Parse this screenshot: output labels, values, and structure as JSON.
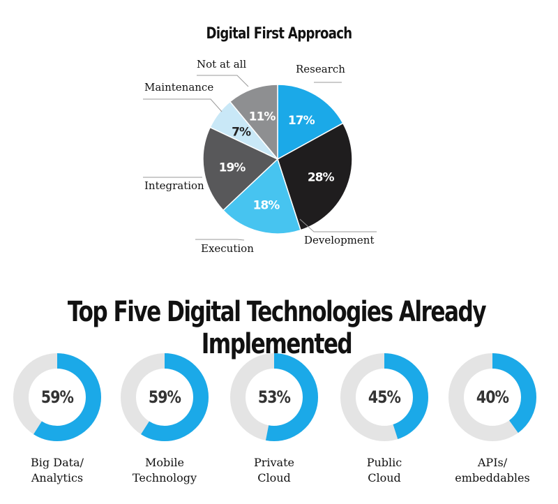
{
  "chart_data": [
    {
      "type": "pie",
      "title": "Digital First Approach",
      "slices": [
        {
          "label": "Research",
          "value": 17,
          "display": "17%",
          "color": "#1ba9e8",
          "text_color": "#ffffff"
        },
        {
          "label": "Development",
          "value": 28,
          "display": "28%",
          "color": "#1f1d1e",
          "text_color": "#ffffff"
        },
        {
          "label": "Execution",
          "value": 18,
          "display": "18%",
          "color": "#47c4f0",
          "text_color": "#ffffff"
        },
        {
          "label": "Integration",
          "value": 19,
          "display": "19%",
          "color": "#58585a",
          "text_color": "#ffffff"
        },
        {
          "label": "Maintenance",
          "value": 7,
          "display": "7%",
          "color": "#c9e8f7",
          "text_color": "#222222"
        },
        {
          "label": "Not at all",
          "value": 11,
          "display": "11%",
          "color": "#8e8f91",
          "text_color": "#ffffff"
        }
      ],
      "start_angle": "12 o'clock",
      "direction": "clockwise"
    },
    {
      "type": "donut",
      "title": "Top Five Digital Technologies Already Implemented",
      "items": [
        {
          "label_lines": [
            "Big Data/",
            "Analytics"
          ],
          "value": 59,
          "display": "59%"
        },
        {
          "label_lines": [
            "Mobile",
            "Technology"
          ],
          "value": 59,
          "display": "59%"
        },
        {
          "label_lines": [
            "Private",
            "Cloud"
          ],
          "value": 53,
          "display": "53%"
        },
        {
          "label_lines": [
            "Public",
            "Cloud"
          ],
          "value": 45,
          "display": "45%"
        },
        {
          "label_lines": [
            "APIs/",
            "embeddables"
          ],
          "value": 40,
          "display": "40%"
        }
      ],
      "ring_color": "#1ba9e8",
      "track_color": "#e4e4e4"
    }
  ]
}
